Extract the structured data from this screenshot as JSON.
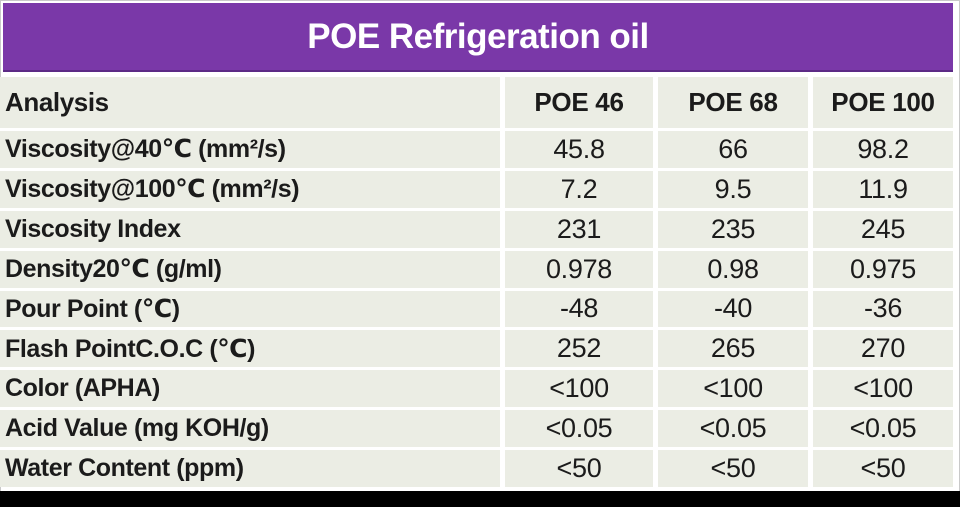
{
  "title": "POE Refrigeration oil",
  "table": {
    "columns": [
      "Analysis",
      "POE 46",
      "POE 68",
      "POE 100"
    ],
    "rows": [
      {
        "label": "Viscosity@40℃ (mm²/s)",
        "values": [
          "45.8",
          "66",
          "98.2"
        ]
      },
      {
        "label": "Viscosity@100℃ (mm²/s)",
        "values": [
          "7.2",
          "9.5",
          "11.9"
        ]
      },
      {
        "label": "Viscosity Index",
        "values": [
          "231",
          "235",
          "245"
        ]
      },
      {
        "label": "Density20℃ (g/ml)",
        "values": [
          "0.978",
          "0.98",
          "0.975"
        ]
      },
      {
        "label": "Pour Point (℃)",
        "values": [
          "-48",
          "-40",
          "-36"
        ]
      },
      {
        "label": "Flash PointC.O.C (℃)",
        "values": [
          "252",
          "265",
          "270"
        ]
      },
      {
        "label": "Color (APHA)",
        "values": [
          "<100",
          "<100",
          "<100"
        ]
      },
      {
        "label": "Acid Value (mg KOH/g)",
        "values": [
          "<0.05",
          "<0.05",
          "<0.05"
        ]
      },
      {
        "label": "Water Content (ppm)",
        "values": [
          "<50",
          "<50",
          "<50"
        ]
      }
    ]
  },
  "colors": {
    "title_bg": "#7A38A8",
    "title_text": "#FFFFFF",
    "cell_bg": "#EBEDE4",
    "text": "#1B1B1B",
    "bottom_bar": "#000000"
  }
}
